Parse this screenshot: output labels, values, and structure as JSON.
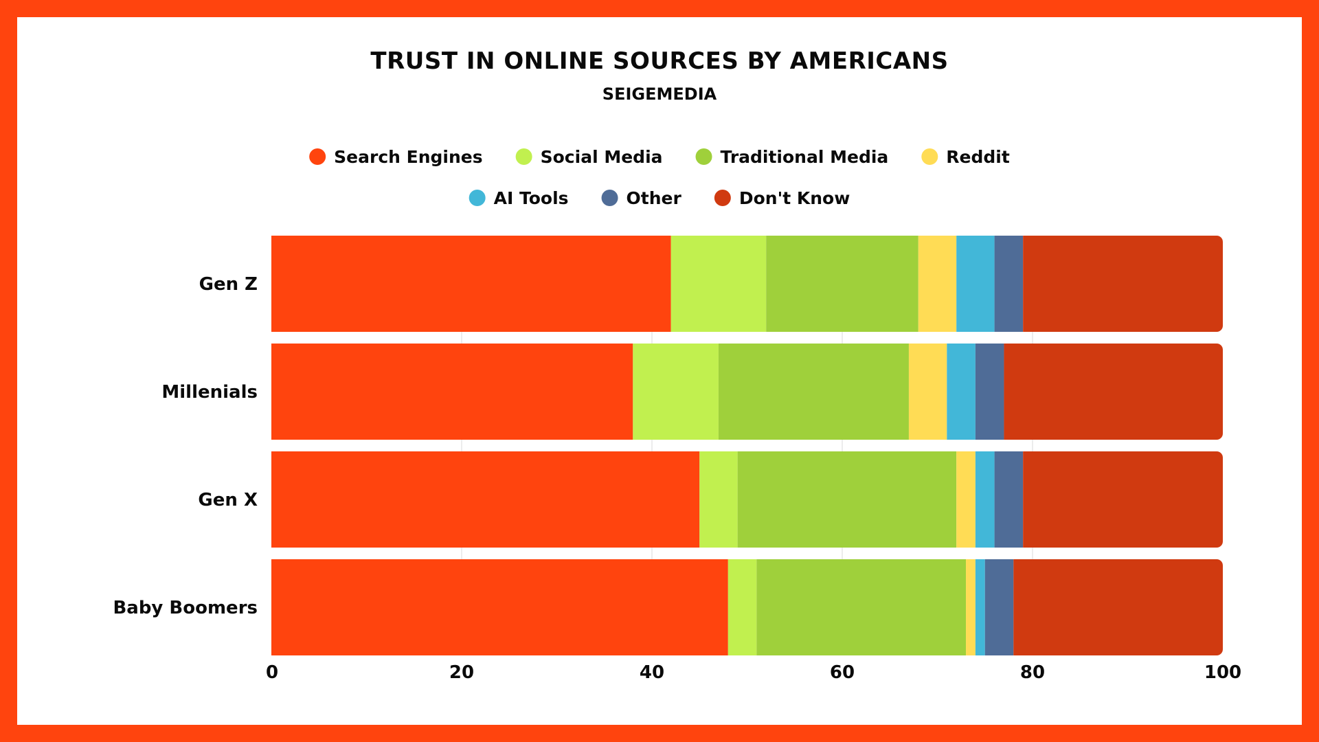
{
  "colors": {
    "border": "#FF440E",
    "background": "#FFFFFF"
  },
  "chart_data": {
    "type": "bar",
    "orientation": "horizontal",
    "stacked": true,
    "title": "TRUST IN ONLINE SOURCES BY AMERICANS",
    "subtitle": "SEIGEMEDIA",
    "categories": [
      "Gen Z",
      "Millenials",
      "Gen X",
      "Baby Boomers"
    ],
    "series": [
      {
        "name": "Search Engines",
        "color": "#FF440E",
        "values": [
          42,
          38,
          45,
          48
        ]
      },
      {
        "name": "Social Media",
        "color": "#C1F04F",
        "values": [
          10,
          9,
          4,
          3
        ]
      },
      {
        "name": "Traditional Media",
        "color": "#9FD03B",
        "values": [
          16,
          20,
          23,
          22
        ]
      },
      {
        "name": "Reddit",
        "color": "#FFDC55",
        "values": [
          4,
          4,
          2,
          1
        ]
      },
      {
        "name": "AI Tools",
        "color": "#42B7D8",
        "values": [
          4,
          3,
          2,
          1
        ]
      },
      {
        "name": "Other",
        "color": "#4F6C97",
        "values": [
          3,
          3,
          3,
          3
        ]
      },
      {
        "name": "Don't Know",
        "color": "#D03A10",
        "values": [
          21,
          23,
          21,
          22
        ]
      }
    ],
    "xlim": [
      0,
      100
    ],
    "xticks": [
      0,
      20,
      40,
      60,
      80,
      100
    ],
    "grid": true,
    "legend_position": "top"
  }
}
